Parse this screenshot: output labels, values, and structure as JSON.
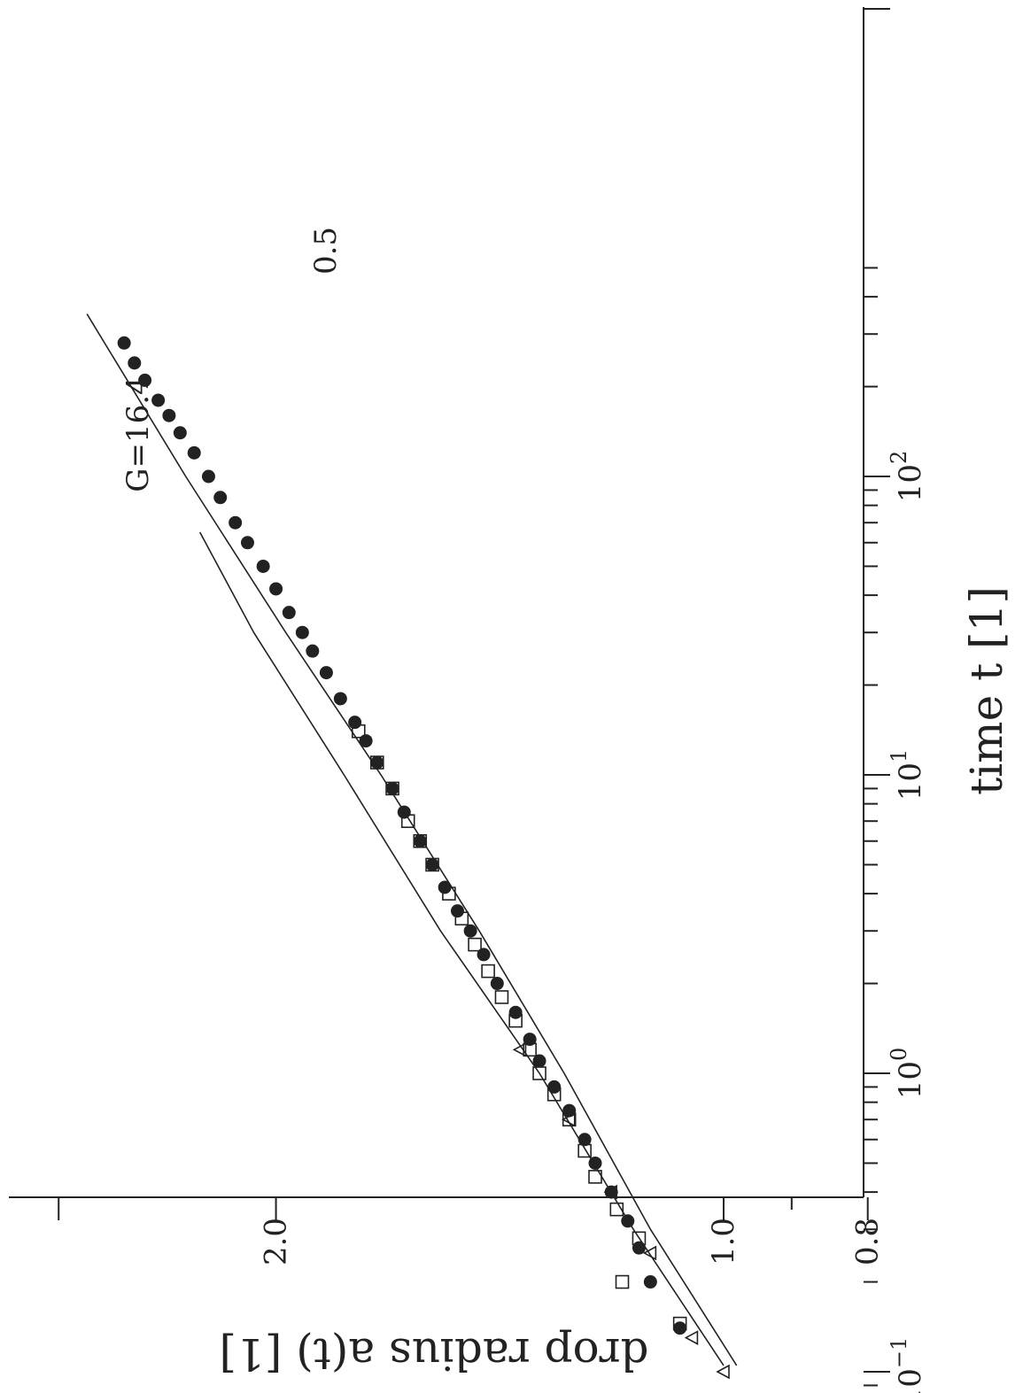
{
  "chart_data": {
    "type": "scatter",
    "orientation_note": "figure printed rotated 90 degrees clockwise",
    "xlabel": "time t [1]",
    "ylabel": "drop radius a(t) [1]",
    "x_scale": "log",
    "y_scale": "log",
    "xlim": [
      0.065,
      500
    ],
    "ylim": [
      0.8,
      2.8
    ],
    "x_ticks": [
      {
        "value": 0.1,
        "base": "10",
        "exp": "−1"
      },
      {
        "value": 1,
        "base": "10",
        "exp": "0"
      },
      {
        "value": 10,
        "base": "10",
        "exp": "1"
      },
      {
        "value": 100,
        "base": "10",
        "exp": "2"
      }
    ],
    "y_ticks": [
      {
        "value": 0.8,
        "label": "0.8"
      },
      {
        "value": 1.0,
        "label": "1.0"
      },
      {
        "value": 2.0,
        "label": "2.0"
      }
    ],
    "grid": false,
    "curves": [
      {
        "label": "G=16.4",
        "x": [
          0.105,
          0.3,
          1,
          3,
          10,
          30,
          65
        ],
        "y": [
          1.0,
          1.15,
          1.33,
          1.55,
          1.8,
          2.07,
          2.25
        ]
      },
      {
        "label": "0.5",
        "x": [
          0.105,
          0.3,
          1,
          3,
          10,
          30,
          100,
          350
        ],
        "y": [
          0.98,
          1.12,
          1.28,
          1.46,
          1.7,
          1.97,
          2.3,
          2.68
        ]
      }
    ],
    "series": [
      {
        "marker": "filled-circle",
        "x": [
          0.14,
          0.2,
          0.26,
          0.32,
          0.4,
          0.5,
          0.6,
          0.75,
          0.9,
          1.1,
          1.3,
          1.6,
          2.0,
          2.5,
          3.0,
          3.5,
          4.2,
          5.0,
          6.0,
          7.5,
          9.0,
          11,
          13,
          15,
          18,
          22,
          26,
          30,
          35,
          42,
          50,
          60,
          70,
          85,
          100,
          120,
          140,
          160,
          180,
          210,
          240,
          280
        ],
        "y": [
          1.07,
          1.12,
          1.14,
          1.16,
          1.19,
          1.22,
          1.24,
          1.27,
          1.3,
          1.33,
          1.35,
          1.38,
          1.42,
          1.45,
          1.48,
          1.51,
          1.54,
          1.57,
          1.6,
          1.64,
          1.67,
          1.71,
          1.74,
          1.77,
          1.81,
          1.85,
          1.89,
          1.92,
          1.96,
          2.0,
          2.04,
          2.09,
          2.13,
          2.18,
          2.22,
          2.27,
          2.32,
          2.36,
          2.4,
          2.45,
          2.49,
          2.53
        ]
      },
      {
        "marker": "open-square",
        "x": [
          0.145,
          0.2,
          0.28,
          0.35,
          0.45,
          0.55,
          0.7,
          0.85,
          1.0,
          1.2,
          1.5,
          1.8,
          2.2,
          2.7,
          3.3,
          4.0,
          5.0,
          6.0,
          7.0,
          9.0,
          11,
          14
        ],
        "y": [
          1.07,
          1.17,
          1.14,
          1.18,
          1.22,
          1.24,
          1.27,
          1.3,
          1.33,
          1.35,
          1.38,
          1.41,
          1.44,
          1.47,
          1.5,
          1.53,
          1.57,
          1.6,
          1.63,
          1.67,
          1.71,
          1.76
        ]
      },
      {
        "marker": "open-triangle",
        "x": [
          0.08,
          0.1,
          0.13,
          0.25,
          0.4,
          0.7,
          1.2
        ],
        "y": [
          0.88,
          1.0,
          1.05,
          1.12,
          1.19,
          1.27,
          1.37
        ]
      }
    ]
  }
}
